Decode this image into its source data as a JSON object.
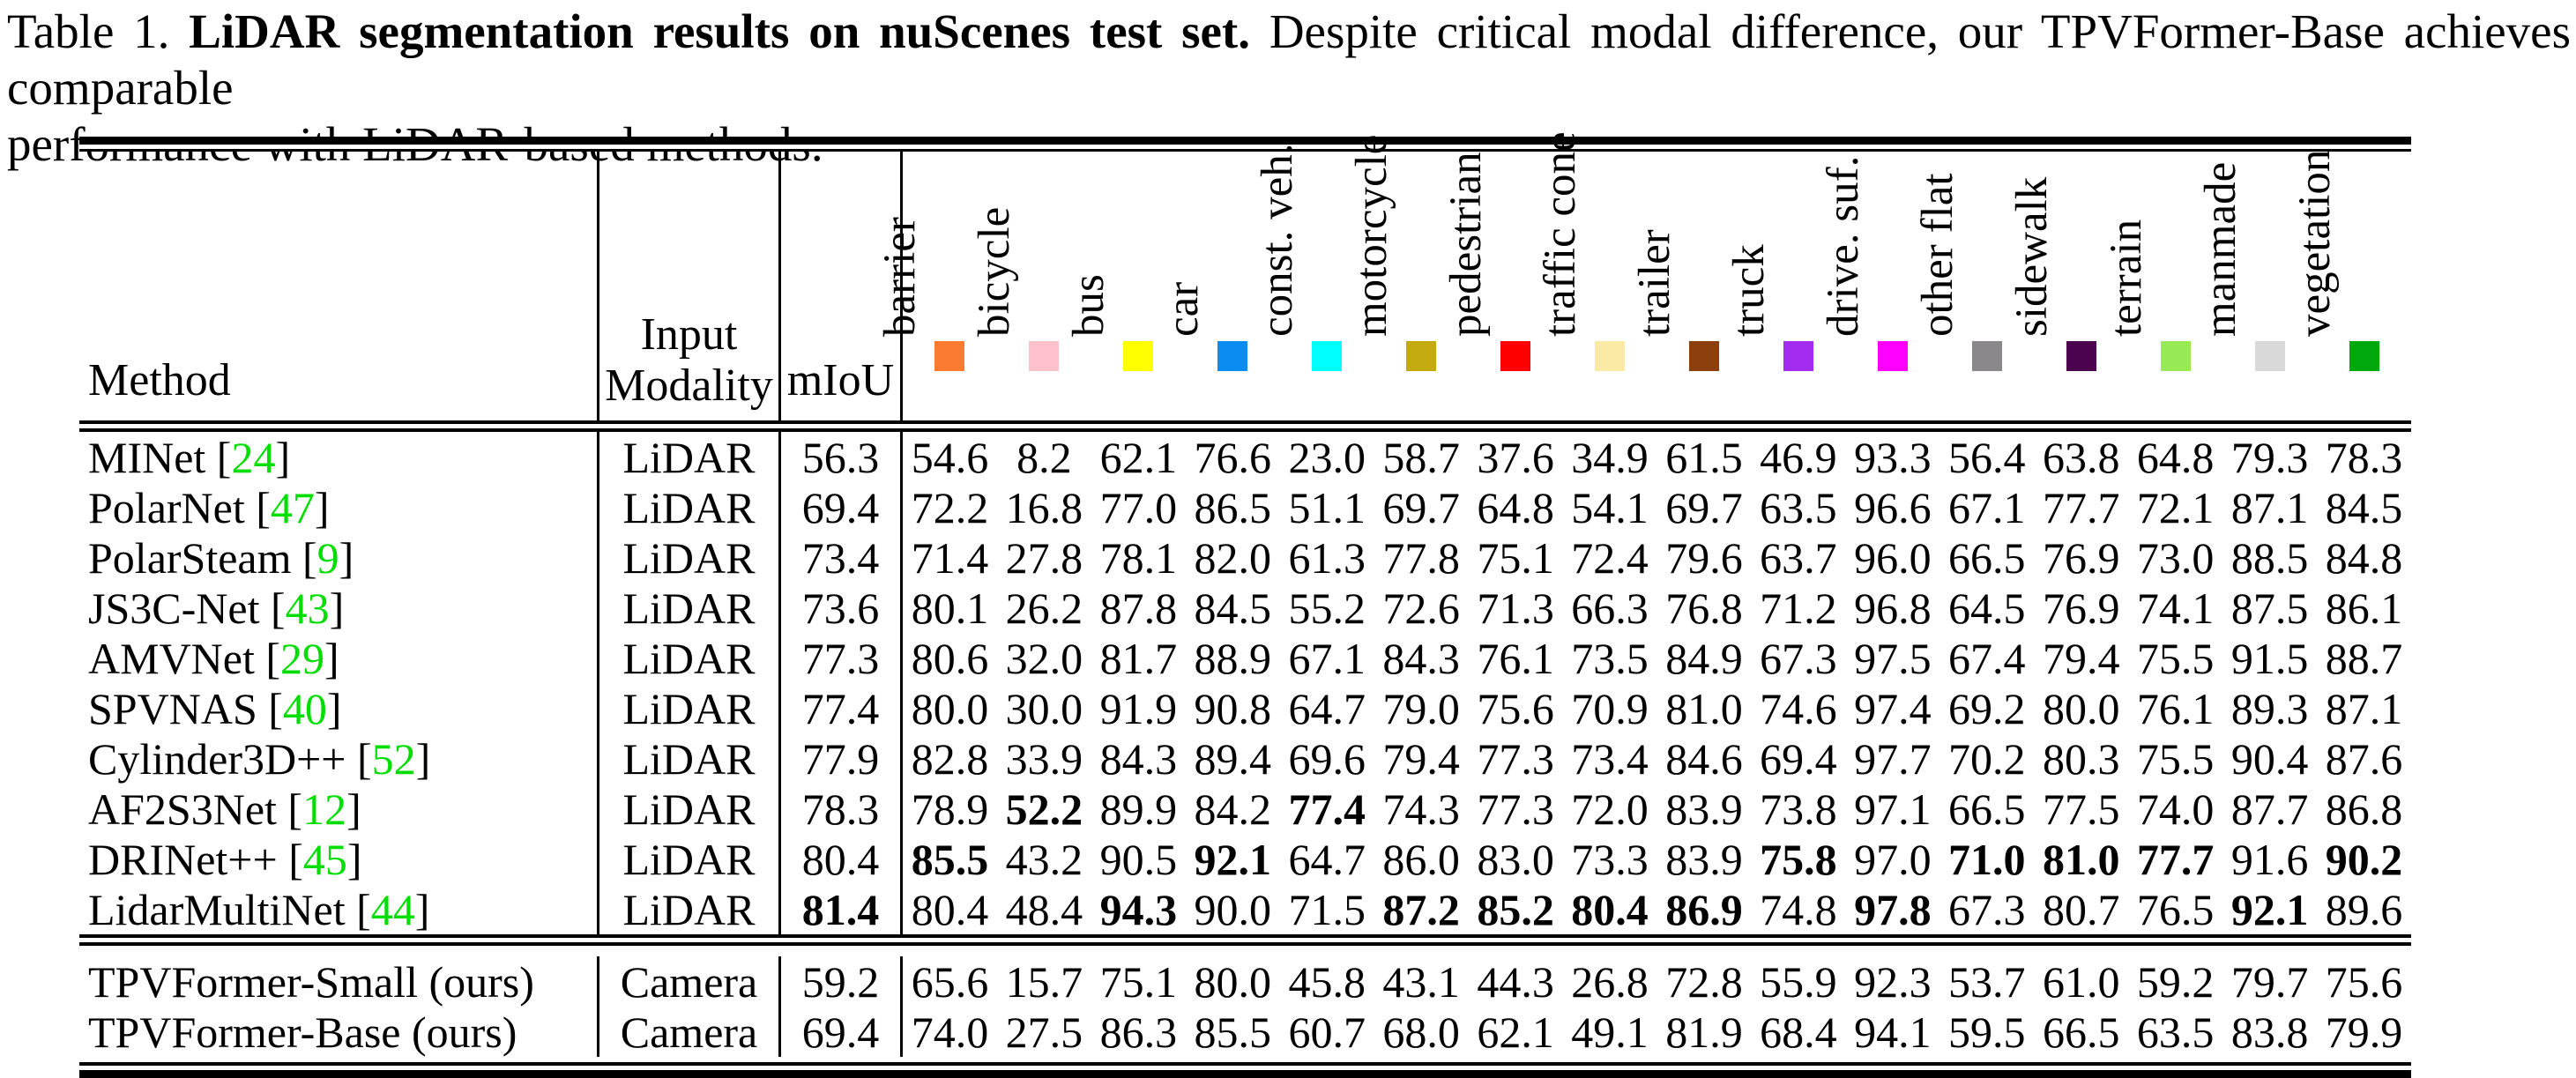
{
  "caption": {
    "label": "Table 1. ",
    "title_bold": "LiDAR segmentation results on nuScenes test set.",
    "after_line1": " Despite critical modal difference, our TPVFormer-Base achieves comparable",
    "line2": "performance with LiDAR-based methods."
  },
  "table": {
    "headers": {
      "method": "Method",
      "modality_line1": "Input",
      "modality_line2": "Modality",
      "miou": "mIoU"
    },
    "classes": [
      {
        "label": "barrier",
        "color": "#FB7B32"
      },
      {
        "label": "bicycle",
        "color": "#FFC1CC"
      },
      {
        "label": "bus",
        "color": "#FFFF00"
      },
      {
        "label": "car",
        "color": "#0A8CF0"
      },
      {
        "label": "const. veh.",
        "color": "#00FFFF"
      },
      {
        "label": "motorcycle",
        "color": "#C2AA0F"
      },
      {
        "label": "pedestrian",
        "color": "#FF0000"
      },
      {
        "label": "traffic cone",
        "color": "#FBE9A6"
      },
      {
        "label": "trailer",
        "color": "#8C3E0C"
      },
      {
        "label": "truck",
        "color": "#A32CF0"
      },
      {
        "label": "drive. suf.",
        "color": "#FF00FF"
      },
      {
        "label": "other flat",
        "color": "#8A888A"
      },
      {
        "label": "sidewalk",
        "color": "#4B0350"
      },
      {
        "label": "terrain",
        "color": "#97EA53"
      },
      {
        "label": "manmade",
        "color": "#D9D9D9"
      },
      {
        "label": "vegetation",
        "color": "#00A80C"
      }
    ],
    "rows": [
      {
        "method": "MINet",
        "cite": "24",
        "modality": "LiDAR",
        "miou": "56.3",
        "miou_bold": false,
        "values": [
          "54.6",
          "8.2",
          "62.1",
          "76.6",
          "23.0",
          "58.7",
          "37.6",
          "34.9",
          "61.5",
          "46.9",
          "93.3",
          "56.4",
          "63.8",
          "64.8",
          "79.3",
          "78.3"
        ],
        "bold": []
      },
      {
        "method": "PolarNet",
        "cite": "47",
        "modality": "LiDAR",
        "miou": "69.4",
        "miou_bold": false,
        "values": [
          "72.2",
          "16.8",
          "77.0",
          "86.5",
          "51.1",
          "69.7",
          "64.8",
          "54.1",
          "69.7",
          "63.5",
          "96.6",
          "67.1",
          "77.7",
          "72.1",
          "87.1",
          "84.5"
        ],
        "bold": []
      },
      {
        "method": "PolarSteam",
        "cite": "9",
        "modality": "LiDAR",
        "miou": "73.4",
        "miou_bold": false,
        "values": [
          "71.4",
          "27.8",
          "78.1",
          "82.0",
          "61.3",
          "77.8",
          "75.1",
          "72.4",
          "79.6",
          "63.7",
          "96.0",
          "66.5",
          "76.9",
          "73.0",
          "88.5",
          "84.8"
        ],
        "bold": []
      },
      {
        "method": "JS3C-Net",
        "cite": "43",
        "modality": "LiDAR",
        "miou": "73.6",
        "miou_bold": false,
        "values": [
          "80.1",
          "26.2",
          "87.8",
          "84.5",
          "55.2",
          "72.6",
          "71.3",
          "66.3",
          "76.8",
          "71.2",
          "96.8",
          "64.5",
          "76.9",
          "74.1",
          "87.5",
          "86.1"
        ],
        "bold": []
      },
      {
        "method": "AMVNet",
        "cite": "29",
        "modality": "LiDAR",
        "miou": "77.3",
        "miou_bold": false,
        "values": [
          "80.6",
          "32.0",
          "81.7",
          "88.9",
          "67.1",
          "84.3",
          "76.1",
          "73.5",
          "84.9",
          "67.3",
          "97.5",
          "67.4",
          "79.4",
          "75.5",
          "91.5",
          "88.7"
        ],
        "bold": []
      },
      {
        "method": "SPVNAS",
        "cite": "40",
        "modality": "LiDAR",
        "miou": "77.4",
        "miou_bold": false,
        "values": [
          "80.0",
          "30.0",
          "91.9",
          "90.8",
          "64.7",
          "79.0",
          "75.6",
          "70.9",
          "81.0",
          "74.6",
          "97.4",
          "69.2",
          "80.0",
          "76.1",
          "89.3",
          "87.1"
        ],
        "bold": []
      },
      {
        "method": "Cylinder3D++",
        "cite": "52",
        "modality": "LiDAR",
        "miou": "77.9",
        "miou_bold": false,
        "values": [
          "82.8",
          "33.9",
          "84.3",
          "89.4",
          "69.6",
          "79.4",
          "77.3",
          "73.4",
          "84.6",
          "69.4",
          "97.7",
          "70.2",
          "80.3",
          "75.5",
          "90.4",
          "87.6"
        ],
        "bold": []
      },
      {
        "method": "AF2S3Net",
        "cite": "12",
        "modality": "LiDAR",
        "miou": "78.3",
        "miou_bold": false,
        "values": [
          "78.9",
          "52.2",
          "89.9",
          "84.2",
          "77.4",
          "74.3",
          "77.3",
          "72.0",
          "83.9",
          "73.8",
          "97.1",
          "66.5",
          "77.5",
          "74.0",
          "87.7",
          "86.8"
        ],
        "bold": [
          1,
          4
        ]
      },
      {
        "method": "DRINet++",
        "cite": "45",
        "modality": "LiDAR",
        "miou": "80.4",
        "miou_bold": false,
        "values": [
          "85.5",
          "43.2",
          "90.5",
          "92.1",
          "64.7",
          "86.0",
          "83.0",
          "73.3",
          "83.9",
          "75.8",
          "97.0",
          "71.0",
          "81.0",
          "77.7",
          "91.6",
          "90.2"
        ],
        "bold": [
          0,
          3,
          9,
          11,
          12,
          13,
          15
        ]
      },
      {
        "method": "LidarMultiNet",
        "cite": "44",
        "modality": "LiDAR",
        "miou": "81.4",
        "miou_bold": true,
        "values": [
          "80.4",
          "48.4",
          "94.3",
          "90.0",
          "71.5",
          "87.2",
          "85.2",
          "80.4",
          "86.9",
          "74.8",
          "97.8",
          "67.3",
          "80.7",
          "76.5",
          "92.1",
          "89.6"
        ],
        "bold": [
          2,
          5,
          6,
          7,
          8,
          10,
          14
        ]
      }
    ],
    "rows_bottom": [
      {
        "method": "TPVFormer-Small (ours)",
        "cite": null,
        "modality": "Camera",
        "miou": "59.2",
        "miou_bold": false,
        "values": [
          "65.6",
          "15.7",
          "75.1",
          "80.0",
          "45.8",
          "43.1",
          "44.3",
          "26.8",
          "72.8",
          "55.9",
          "92.3",
          "53.7",
          "61.0",
          "59.2",
          "79.7",
          "75.6"
        ],
        "bold": []
      },
      {
        "method": "TPVFormer-Base (ours)",
        "cite": null,
        "modality": "Camera",
        "miou": "69.4",
        "miou_bold": false,
        "values": [
          "74.0",
          "27.5",
          "86.3",
          "85.5",
          "60.7",
          "68.0",
          "62.1",
          "49.1",
          "81.9",
          "68.4",
          "94.1",
          "59.5",
          "66.5",
          "63.5",
          "83.8",
          "79.9"
        ],
        "bold": []
      }
    ]
  }
}
